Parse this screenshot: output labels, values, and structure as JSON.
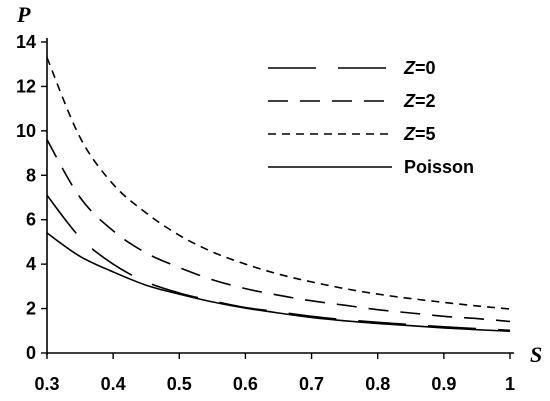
{
  "chart_data": {
    "type": "line",
    "xlabel": "S",
    "ylabel": "P",
    "xlim": [
      0.3,
      1.0
    ],
    "ylim": [
      0,
      14
    ],
    "xticks": [
      0.3,
      0.4,
      0.5,
      0.6,
      0.7,
      0.8,
      0.9,
      1.0
    ],
    "xtick_labels": [
      "0.3",
      "0.4",
      "0.5",
      "0.6",
      "0.7",
      "0.8",
      "0.9",
      "1"
    ],
    "yticks": [
      0,
      2,
      4,
      6,
      8,
      10,
      12,
      14
    ],
    "ytick_labels": [
      "0",
      "2",
      "4",
      "6",
      "8",
      "10",
      "12",
      "14"
    ],
    "grid": false,
    "legend_position": "top-right",
    "series": [
      {
        "name": "Z=0",
        "legend_var": "Z",
        "legend_rest": "=0",
        "style": "long-dash",
        "x": [
          0.3,
          0.35,
          0.4,
          0.45,
          0.5,
          0.55,
          0.6,
          0.65,
          0.7,
          0.75,
          0.8,
          0.85,
          0.9,
          0.95,
          1.0
        ],
        "values": [
          7.1,
          5.2,
          4.0,
          3.2,
          2.7,
          2.35,
          2.05,
          1.85,
          1.65,
          1.5,
          1.38,
          1.28,
          1.18,
          1.1,
          1.02
        ]
      },
      {
        "name": "Z=2",
        "legend_var": "Z",
        "legend_rest": "=2",
        "style": "medium-dash",
        "x": [
          0.3,
          0.35,
          0.4,
          0.45,
          0.5,
          0.55,
          0.6,
          0.65,
          0.7,
          0.75,
          0.8,
          0.85,
          0.9,
          0.95,
          1.0
        ],
        "values": [
          9.6,
          7.0,
          5.5,
          4.5,
          3.85,
          3.3,
          2.9,
          2.6,
          2.35,
          2.15,
          1.95,
          1.8,
          1.65,
          1.55,
          1.42
        ]
      },
      {
        "name": "Z=5",
        "legend_var": "Z",
        "legend_rest": "=5",
        "style": "short-dash",
        "x": [
          0.3,
          0.35,
          0.4,
          0.45,
          0.5,
          0.55,
          0.6,
          0.65,
          0.7,
          0.75,
          0.8,
          0.85,
          0.9,
          0.95,
          1.0
        ],
        "values": [
          13.3,
          9.7,
          7.6,
          6.3,
          5.3,
          4.55,
          4.0,
          3.55,
          3.2,
          2.9,
          2.65,
          2.45,
          2.28,
          2.12,
          1.98
        ]
      },
      {
        "name": "Poisson",
        "legend_var": "",
        "legend_rest": "Poisson",
        "style": "solid",
        "x": [
          0.3,
          0.35,
          0.4,
          0.45,
          0.5,
          0.55,
          0.6,
          0.65,
          0.7,
          0.75,
          0.8,
          0.85,
          0.9,
          0.95,
          1.0
        ],
        "values": [
          5.4,
          4.35,
          3.65,
          3.05,
          2.65,
          2.3,
          2.02,
          1.8,
          1.6,
          1.45,
          1.33,
          1.23,
          1.13,
          1.05,
          0.98
        ]
      }
    ]
  }
}
